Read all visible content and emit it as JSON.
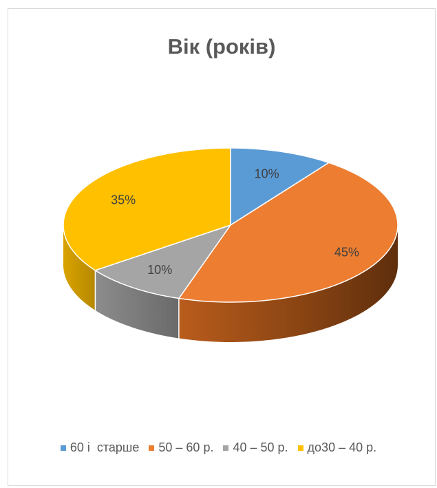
{
  "chart_data": {
    "type": "pie",
    "title": "Вік (років)",
    "categories": [
      "60 і  старше",
      "50 – 60 р.",
      "40 – 50 р.",
      "до30 – 40 р."
    ],
    "values": [
      10,
      45,
      10,
      35
    ],
    "labels": [
      "10%",
      "45%",
      "10%",
      "35%"
    ],
    "colors": [
      "#5b9bd5",
      "#ed7d31",
      "#a5a5a5",
      "#ffc000"
    ],
    "legend_position": "bottom",
    "style": "3d"
  }
}
